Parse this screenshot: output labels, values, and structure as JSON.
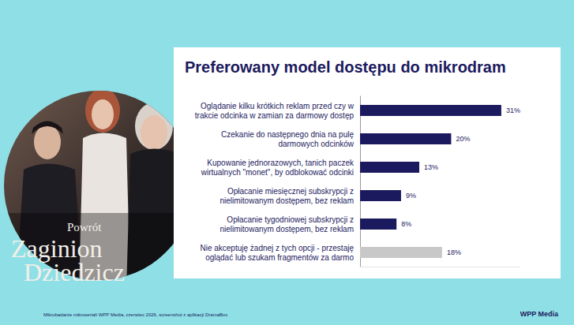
{
  "chart_data": {
    "type": "bar",
    "orientation": "horizontal",
    "title": "Preferowany model dostępu do mikrodram",
    "categories": [
      "Oglądanie kilku krótkich reklam przed czy w trakcie odcinka w zamian za darmowy dostęp",
      "Czekanie do następnego dnia na pulę darmowych odcinków",
      "Kupowanie jednorazowych, tanich paczek wirtualnych \"monet\", by odblokować odcinki",
      "Opłacanie miesięcznej subskrypcji z nielimitowanym dostępem, bez reklam",
      "Opłacanie tygodniowej subskrypcji z nielimitowanym dostępem, bez reklam",
      "Nie akceptuję żadnej z tych opcji - przestaję oglądać lub szukam fragmentów za darmo"
    ],
    "values": [
      31,
      20,
      13,
      9,
      8,
      18
    ],
    "value_labels": [
      "31%",
      "20%",
      "13%",
      "9%",
      "8%",
      "18%"
    ],
    "colors": [
      "#1c1a5e",
      "#1c1a5e",
      "#1c1a5e",
      "#1c1a5e",
      "#1c1a5e",
      "#c8c8c8"
    ],
    "xlim": [
      0,
      35
    ],
    "data_labels": true,
    "tick_labels": "y",
    "grid": false
  },
  "poster": {
    "lines": [
      "Powrót",
      "Zaginion",
      "Dziedzicz"
    ]
  },
  "footer": {
    "source": "Mikrobadanie mikroseriali WPP Media, czerwiec 2026, screenshot z aplikacji DramaBox",
    "brand": "WPP Media"
  }
}
